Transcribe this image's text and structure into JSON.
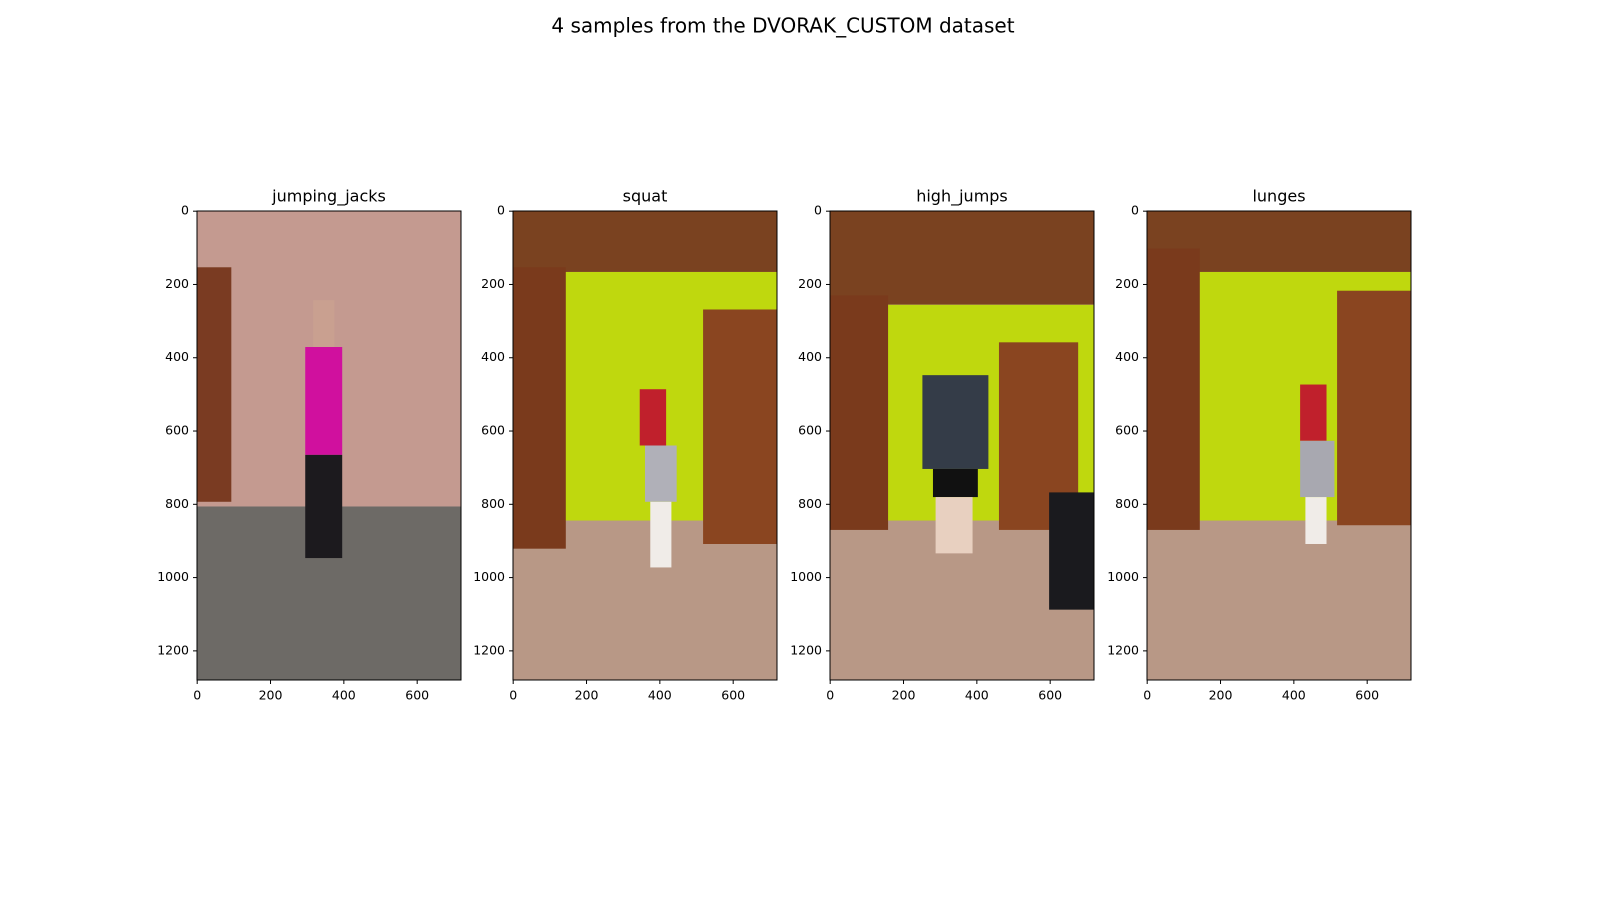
{
  "title": "4 samples from the DVORAK_CUSTOM dataset",
  "chart_data": [
    {
      "type": "image",
      "title": "jumping_jacks",
      "xlim": [
        -0.5,
        719.5
      ],
      "ylim": [
        1279.5,
        -0.5
      ],
      "xticks": [
        0,
        200,
        400,
        600
      ],
      "yticks": [
        0,
        200,
        400,
        600,
        800,
        1000,
        1200
      ]
    },
    {
      "type": "image",
      "title": "squat",
      "xlim": [
        -0.5,
        719.5
      ],
      "ylim": [
        1279.5,
        -0.5
      ],
      "xticks": [
        0,
        200,
        400,
        600
      ],
      "yticks": [
        0,
        200,
        400,
        600,
        800,
        1000,
        1200
      ]
    },
    {
      "type": "image",
      "title": "high_jumps",
      "xlim": [
        -0.5,
        719.5
      ],
      "ylim": [
        1279.5,
        -0.5
      ],
      "xticks": [
        0,
        200,
        400,
        600
      ],
      "yticks": [
        0,
        200,
        400,
        600,
        800,
        1000,
        1200
      ]
    },
    {
      "type": "image",
      "title": "lunges",
      "xlim": [
        -0.5,
        719.5
      ],
      "ylim": [
        1279.5,
        -0.5
      ],
      "xticks": [
        0,
        200,
        400,
        600
      ],
      "yticks": [
        0,
        200,
        400,
        600,
        800,
        1000,
        1200
      ]
    }
  ]
}
